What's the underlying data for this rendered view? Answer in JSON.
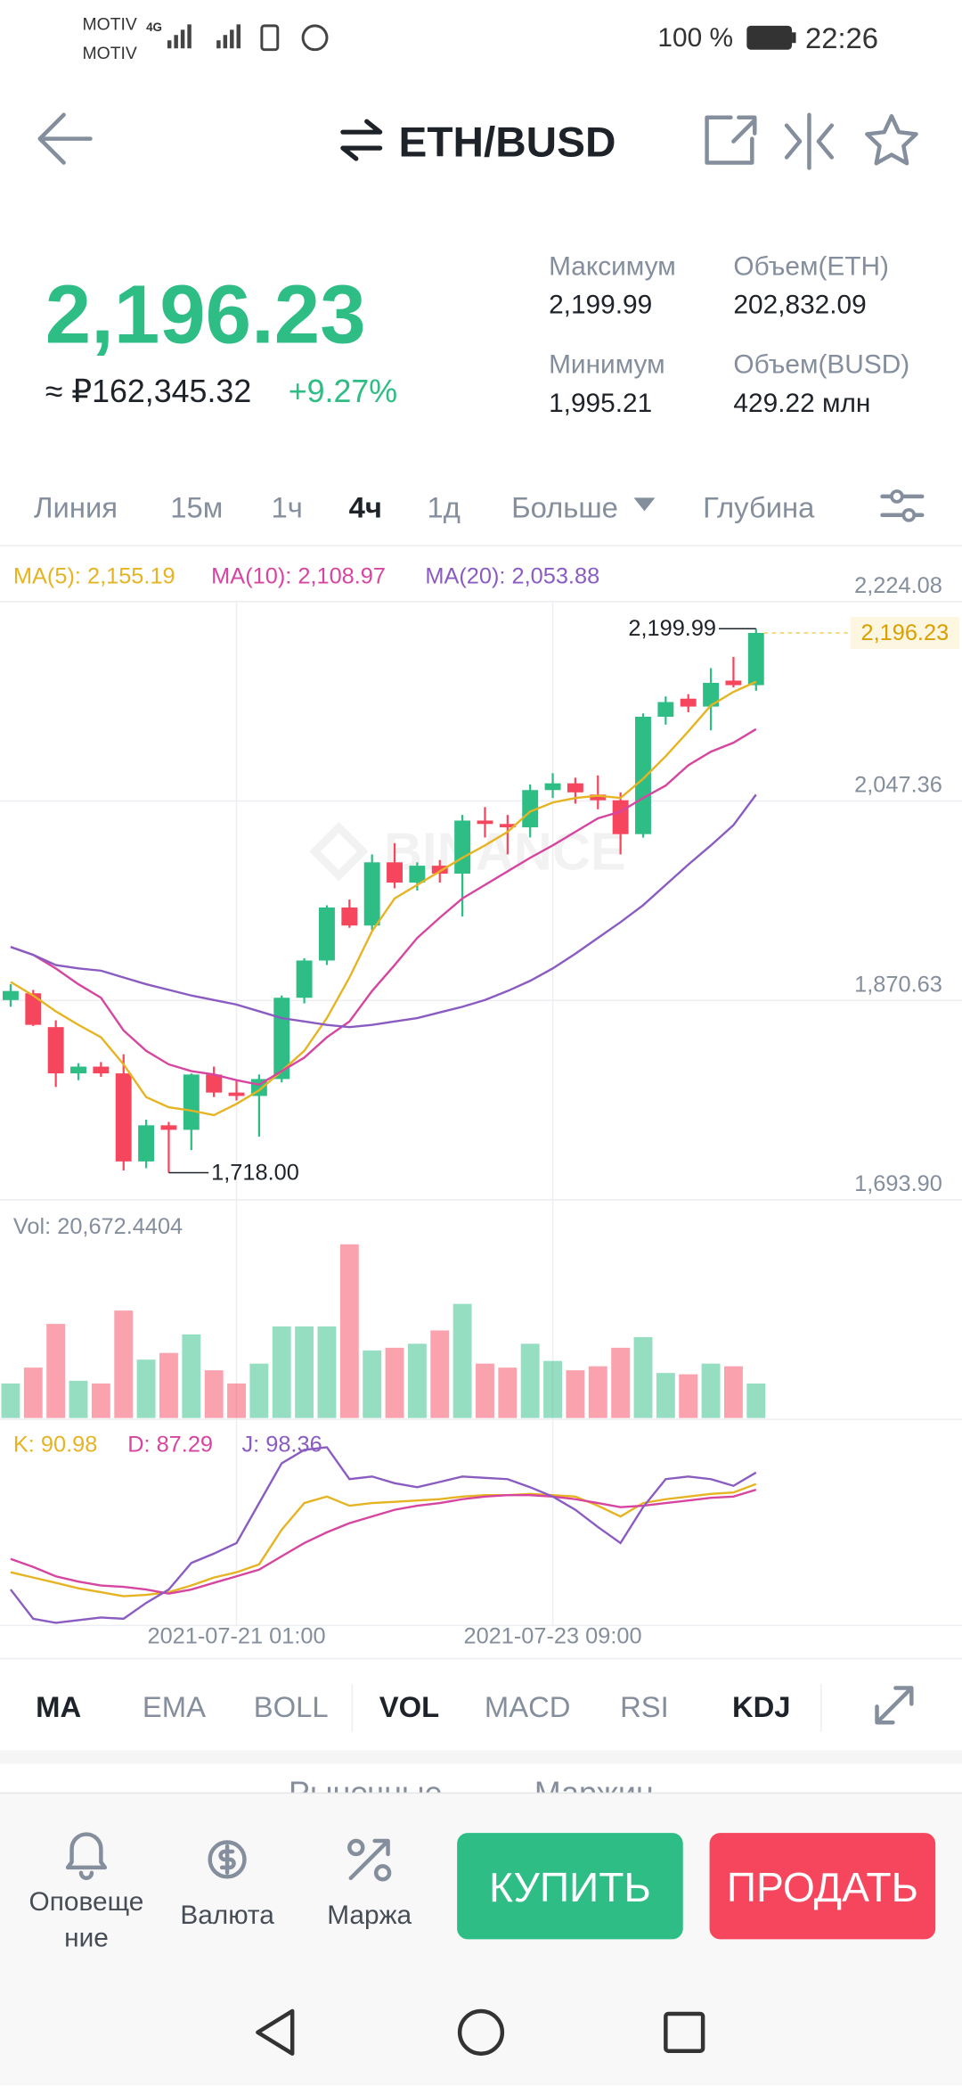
{
  "status_bar": {
    "carrier_1": "MOTIV",
    "carrier_2": "MOTIV",
    "network": "4G",
    "battery": "100 %",
    "time": "22:26"
  },
  "header": {
    "pair": "ETH/BUSD"
  },
  "ticker": {
    "last_price": "2,196.23",
    "fiat_price": "≈ ₽162,345.32",
    "change": "+9.27%"
  },
  "stats": [
    {
      "label": "Максимум",
      "value": "2,199.99"
    },
    {
      "label": "Объем(ETH)",
      "value": "202,832.09"
    },
    {
      "label": "Минимум",
      "value": "1,995.21"
    },
    {
      "label": "Объем(BUSD)",
      "value": "429.22 млн"
    }
  ],
  "intervals": [
    "Линия",
    "15м",
    "1ч",
    "4ч",
    "1д",
    "Больше",
    "Глубина"
  ],
  "chart_data": {
    "type": "candlestick",
    "watermark": "BINANCE",
    "categories": [
      null,
      null,
      null,
      null,
      null,
      null,
      null,
      null,
      null,
      null,
      "2021-07-21 01:00",
      null,
      null,
      null,
      null,
      null,
      null,
      null,
      null,
      null,
      null,
      null,
      null,
      null,
      "2021-07-23 09:00",
      null,
      null,
      null,
      null,
      null,
      null,
      null,
      null,
      null
    ],
    "open": [
      1871,
      1877,
      1847,
      1806,
      1812,
      1806,
      1728,
      1760,
      1756,
      1805,
      1789,
      1786,
      1801,
      1873,
      1906,
      1953,
      1937,
      1993,
      1975,
      1990,
      1983,
      2030,
      2027,
      2024,
      2057,
      2063,
      2053,
      2048,
      2018,
      2122,
      2138,
      2131,
      2154,
      2150
    ],
    "high": [
      1885,
      1880,
      1853,
      1815,
      1816,
      1823,
      1765,
      1763,
      1806,
      1812,
      1800,
      1805,
      1875,
      1908,
      1955,
      1960,
      2000,
      2010,
      1993,
      1995,
      2035,
      2042,
      2035,
      2062,
      2072,
      2068,
      2070,
      2055,
      2125,
      2140,
      2142,
      2165,
      2175,
      2199.99
    ],
    "low": [
      1865,
      1848,
      1794,
      1800,
      1803,
      1720,
      1722,
      1718,
      1738,
      1785,
      1782,
      1750,
      1798,
      1868,
      1902,
      1935,
      1933,
      1970,
      1968,
      1975,
      1945,
      2015,
      2000,
      2015,
      2050,
      2045,
      2040,
      2000,
      2015,
      2115,
      2126,
      2110,
      2148,
      2145
    ],
    "close": [
      1879,
      1849,
      1806,
      1812,
      1806,
      1728,
      1760,
      1756,
      1805,
      1789,
      1786,
      1801,
      1873,
      1906,
      1953,
      1937,
      1993,
      1975,
      1990,
      1983,
      2030,
      2027,
      2024,
      2057,
      2063,
      2055,
      2048,
      2018,
      2122,
      2135,
      2131,
      2152,
      2150,
      2196.23
    ],
    "up_color": "#2ebd85",
    "down_color": "#f6465d",
    "ylim": [
      1693.9,
      2224.08
    ],
    "yticks": [
      {
        "value": 2224.08,
        "label": "2,224.08"
      },
      {
        "value": 2047.36,
        "label": "2,047.36"
      },
      {
        "value": 1870.63,
        "label": "1,870.63"
      },
      {
        "value": 1693.9,
        "label": "1,693.90"
      }
    ],
    "ma_series": [
      {
        "name": "MA(5): 2,155.19",
        "color": "#e6b422",
        "values": [
          1887,
          1875,
          1861,
          1849,
          1838,
          1814,
          1785,
          1776,
          1773,
          1769,
          1779,
          1791,
          1808,
          1826,
          1855,
          1891,
          1932,
          1961,
          1973,
          1985,
          1997,
          2008,
          2020,
          2038,
          2046,
          2050,
          2052,
          2050,
          2067,
          2087,
          2109,
          2132,
          2144,
          2153
        ]
      },
      {
        "name": "MA(10): 2,108.97",
        "color": "#d6459f",
        "values": [
          1918,
          1911,
          1899,
          1885,
          1873,
          1844,
          1826,
          1814,
          1808,
          1805,
          1800,
          1796,
          1808,
          1820,
          1838,
          1852,
          1879,
          1902,
          1926,
          1944,
          1961,
          1973,
          1985,
          1997,
          2008,
          2020,
          2032,
          2038,
          2050,
          2061,
          2079,
          2091,
          2099,
          2111
        ]
      },
      {
        "name": "MA(20): 2,053.88",
        "color": "#8a5cc2",
        "values": [
          1918,
          1911,
          1902,
          1899,
          1897,
          1891,
          1885,
          1880,
          1875,
          1871,
          1867,
          1861,
          1855,
          1852,
          1849,
          1847,
          1849,
          1852,
          1855,
          1860,
          1865,
          1871,
          1879,
          1888,
          1899,
          1912,
          1926,
          1940,
          1955,
          1973,
          1991,
          2008,
          2026,
          2053
        ]
      }
    ],
    "annotations": [
      {
        "value": 2199.99,
        "label": "2,199.99"
      },
      {
        "value": 1718,
        "label": "1,718.00"
      }
    ],
    "last_price": {
      "value": 2196.23,
      "label": "2,196.23"
    },
    "volume": {
      "name": "Vol: 20,672.4404",
      "ylim": [
        0,
        110000
      ],
      "values": [
        20700,
        30200,
        56400,
        22300,
        20700,
        64400,
        35000,
        39000,
        50100,
        28600,
        20700,
        32600,
        54900,
        54900,
        54900,
        104100,
        40500,
        42100,
        44500,
        52500,
        68400,
        32600,
        30200,
        44500,
        34200,
        28600,
        31000,
        42100,
        48500,
        27000,
        26200,
        32600,
        31000,
        20672.4404
      ]
    },
    "kdj": {
      "ylim": [
        0,
        130
      ],
      "series": [
        {
          "name": "K: 90.98",
          "color": "#e6b422",
          "values": [
            34.2,
            30.8,
            27.4,
            23.9,
            21.4,
            18.8,
            19.7,
            21.4,
            25.7,
            30.8,
            34.2,
            39.3,
            61.6,
            78.7,
            82.9,
            77.0,
            78.7,
            79.5,
            80.4,
            81.2,
            82.9,
            83.8,
            83.8,
            84.6,
            83.8,
            82.9,
            77.0,
            70.1,
            78.7,
            81.2,
            82.9,
            84.6,
            85.5,
            90.98
          ]
        },
        {
          "name": "D: 87.29",
          "color": "#d6459f",
          "values": [
            42.8,
            37.6,
            31.6,
            28.2,
            25.7,
            24.8,
            23.1,
            20.5,
            23.1,
            27.4,
            31.6,
            35.9,
            44.5,
            53.0,
            59.9,
            65.8,
            70.1,
            74.4,
            77.0,
            78.7,
            81.2,
            82.9,
            83.8,
            83.8,
            82.9,
            81.2,
            78.7,
            76.1,
            77.0,
            78.7,
            80.4,
            82.1,
            82.9,
            87.29
          ]
        },
        {
          "name": "J: 98.36",
          "color": "#8a5cc2",
          "values": [
            23.1,
            4.3,
            1.7,
            3.4,
            5.1,
            4.3,
            14.5,
            23.1,
            40.2,
            46.2,
            53.0,
            78.7,
            104.3,
            112.9,
            114.6,
            94.1,
            95.8,
            91.5,
            88.9,
            92.3,
            95.8,
            94.9,
            94.1,
            88.9,
            82.9,
            74.4,
            63.3,
            53.0,
            76.1,
            94.1,
            95.8,
            94.1,
            89.8,
            98.36
          ]
        }
      ]
    }
  },
  "indicators": [
    "MA",
    "EMA",
    "BOLL",
    "VOL",
    "MACD",
    "RSI",
    "KDJ"
  ],
  "trade_tabs": [
    "Рыночные",
    "Маржин"
  ],
  "actions": {
    "alert": [
      "Оповеще",
      "ние"
    ],
    "currency": "Валюта",
    "margin": "Маржа"
  },
  "buttons": {
    "buy": "КУПИТЬ",
    "sell": "ПРОДАТЬ"
  }
}
